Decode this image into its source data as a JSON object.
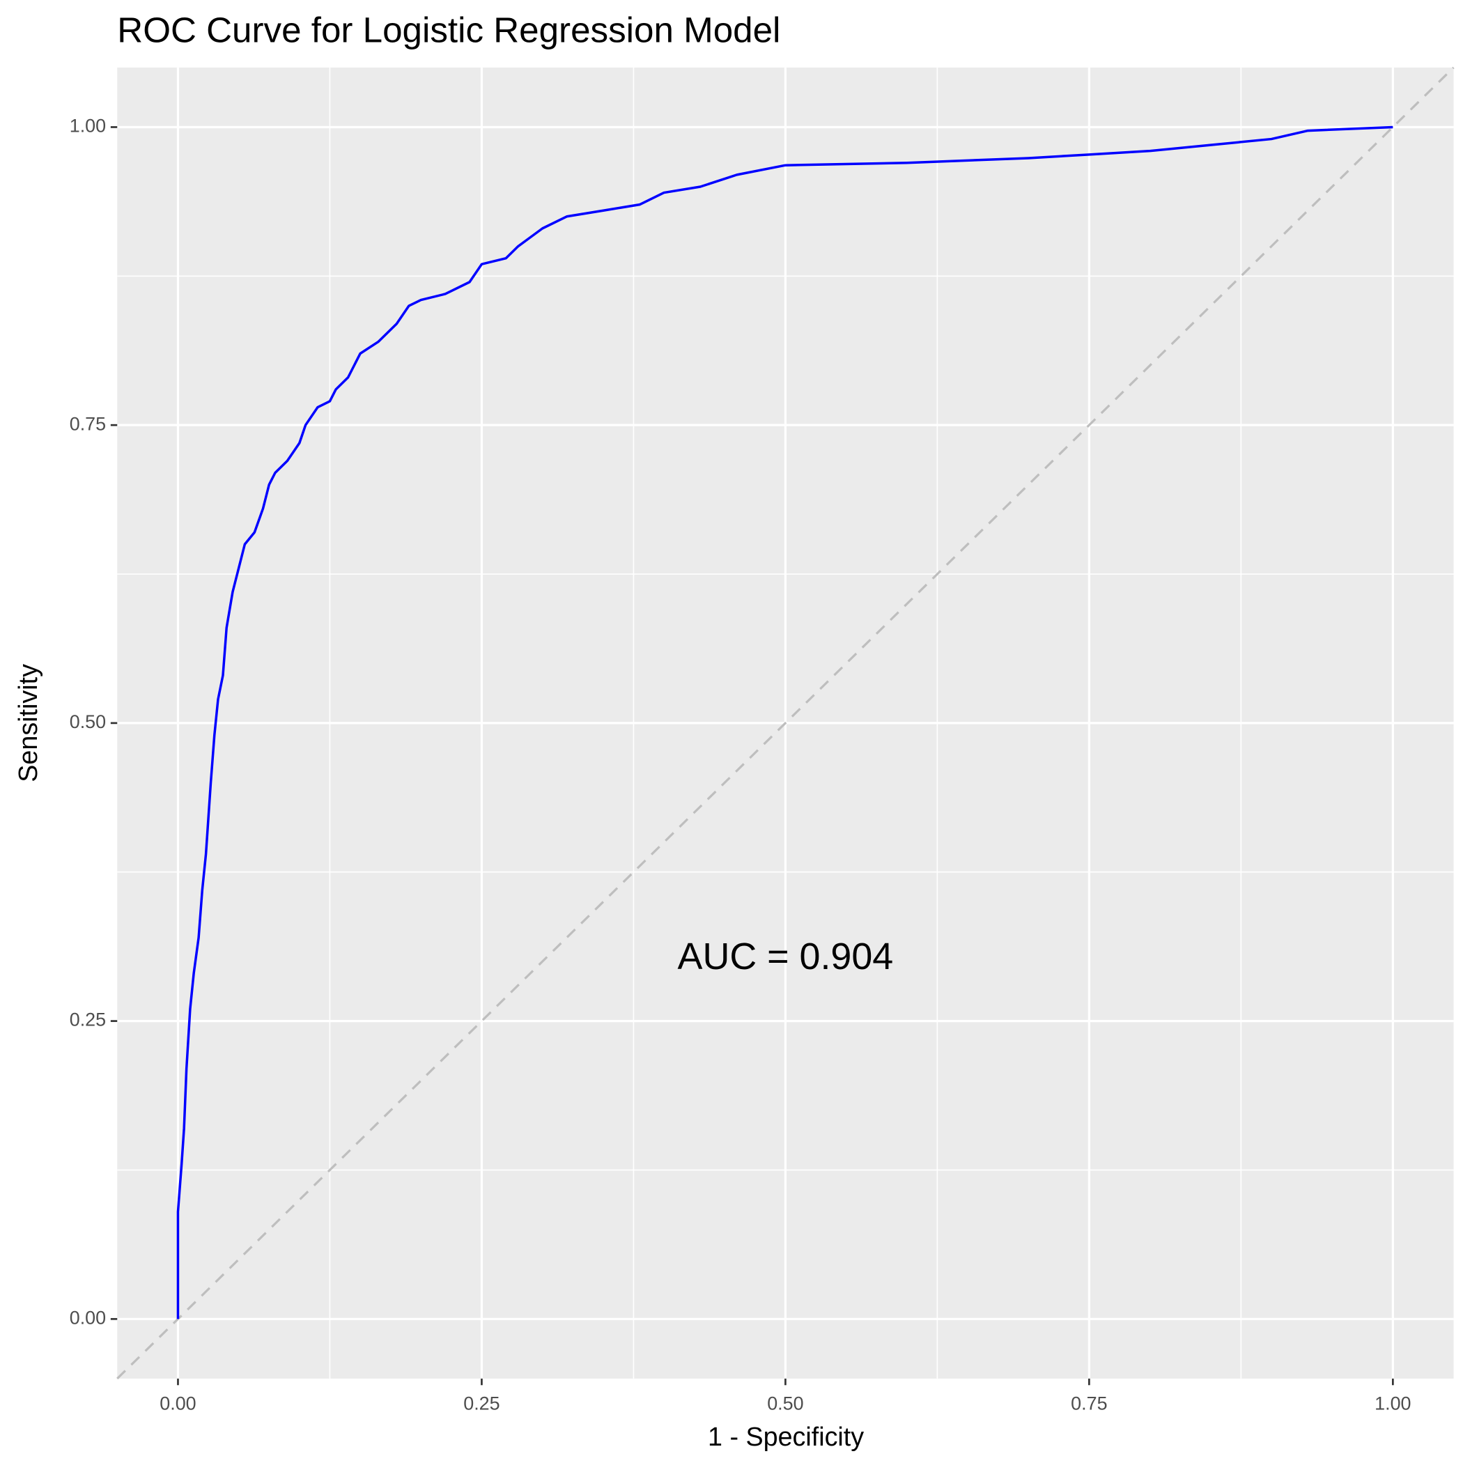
{
  "chart_data": {
    "type": "line",
    "title": "ROC Curve for Logistic Regression Model",
    "x_label": "1 - Specificity",
    "y_label": "Sensitivity",
    "annotation": "AUC = 0.904",
    "color": "#0000ff",
    "grid": true,
    "xlim": [
      -0.05,
      1.05
    ],
    "ylim": [
      -0.05,
      1.05
    ],
    "xticks": [
      {
        "value": 0,
        "label": "0.00"
      },
      {
        "value": 0.25,
        "label": "0.25"
      },
      {
        "value": 0.5,
        "label": "0.50"
      },
      {
        "value": 0.75,
        "label": "0.75"
      },
      {
        "value": 1,
        "label": "1.00"
      }
    ],
    "yticks": [
      {
        "value": 0,
        "label": "0.00"
      },
      {
        "value": 0.25,
        "label": "0.25"
      },
      {
        "value": 0.5,
        "label": "0.50"
      },
      {
        "value": 0.75,
        "label": "0.75"
      },
      {
        "value": 1,
        "label": "1.00"
      }
    ],
    "x": [
      0,
      0,
      0.003,
      0.005,
      0.007,
      0.01,
      0.013,
      0.017,
      0.02,
      0.023,
      0.025,
      0.027,
      0.03,
      0.033,
      0.037,
      0.04,
      0.045,
      0.05,
      0.055,
      0.063,
      0.07,
      0.075,
      0.08,
      0.09,
      0.1,
      0.105,
      0.115,
      0.125,
      0.13,
      0.14,
      0.15,
      0.165,
      0.18,
      0.19,
      0.2,
      0.22,
      0.24,
      0.25,
      0.27,
      0.28,
      0.3,
      0.32,
      0.35,
      0.38,
      0.4,
      0.43,
      0.46,
      0.5,
      0.6,
      0.7,
      0.75,
      0.8,
      0.85,
      0.9,
      0.93,
      1
    ],
    "values": [
      0,
      0.09,
      0.13,
      0.16,
      0.21,
      0.26,
      0.29,
      0.32,
      0.36,
      0.39,
      0.42,
      0.45,
      0.49,
      0.52,
      0.54,
      0.58,
      0.61,
      0.63,
      0.65,
      0.66,
      0.68,
      0.7,
      0.71,
      0.72,
      0.735,
      0.75,
      0.765,
      0.77,
      0.78,
      0.79,
      0.81,
      0.82,
      0.835,
      0.85,
      0.855,
      0.86,
      0.87,
      0.885,
      0.89,
      0.9,
      0.915,
      0.925,
      0.93,
      0.935,
      0.945,
      0.95,
      0.96,
      0.968,
      0.97,
      0.974,
      0.977,
      0.98,
      0.985,
      0.99,
      0.997,
      1
    ]
  }
}
